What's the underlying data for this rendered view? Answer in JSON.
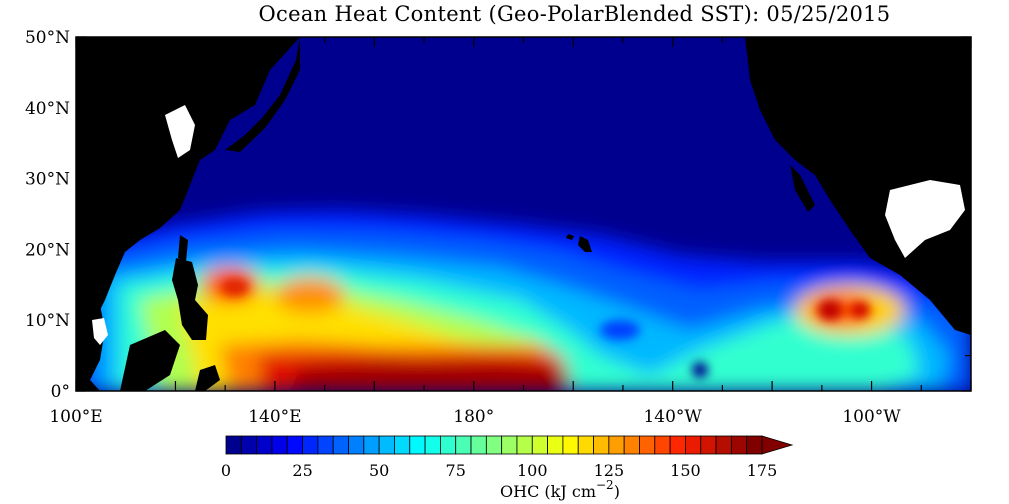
{
  "title": "Ocean Heat Content (Geo-PolarBlended SST): 05/25/2015",
  "colorbar": {
    "label": "OHC (kJ cm",
    "label_exp": "−2",
    "label_close": ")",
    "ticks": [
      "0",
      "25",
      "50",
      "75",
      "100",
      "125",
      "150",
      "175"
    ],
    "min": 0,
    "max": 175,
    "step": 5
  },
  "map": {
    "lat_labels": [
      "50°N",
      "40°N",
      "30°N",
      "20°N",
      "10°N",
      "0°"
    ],
    "lon_labels": [
      "100°E",
      "140°E",
      "180°",
      "140°W",
      "100°W"
    ],
    "lat_range": [
      0,
      50
    ],
    "lon_range_east": [
      100,
      280
    ]
  },
  "colors": {
    "land": "#000000",
    "cool_ocean": "#00008f",
    "warm_max": "#7f0000"
  }
}
